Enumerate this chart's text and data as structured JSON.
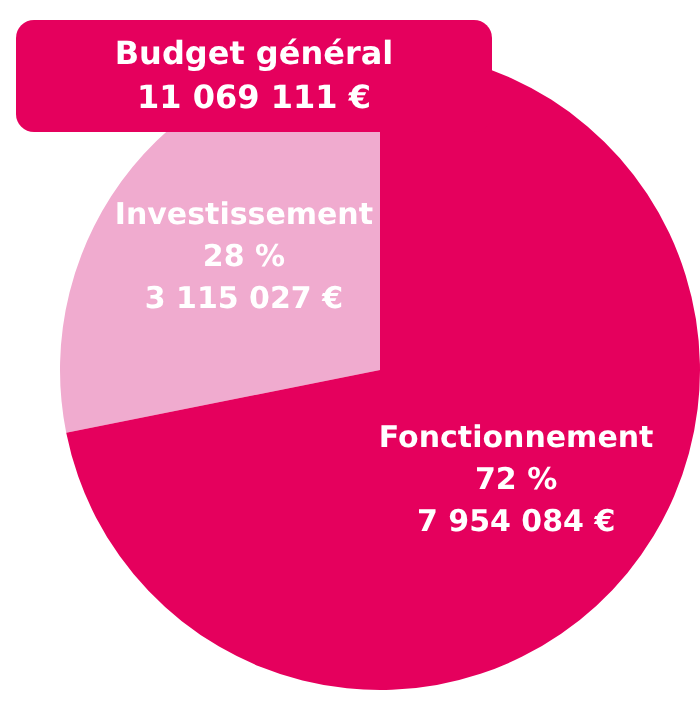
{
  "chart_data": {
    "type": "pie",
    "title": "Budget général",
    "subtitle": "11 069 111 €",
    "categories": [
      "Investissement",
      "Fonctionnement"
    ],
    "values": [
      3115027,
      7954084
    ],
    "colors": [
      "#f0abcf",
      "#e5005d"
    ],
    "value_labels": [
      "28 %\n3 115 027 €",
      "72 %\n7 954 084 €"
    ],
    "legend": false
  }
}
